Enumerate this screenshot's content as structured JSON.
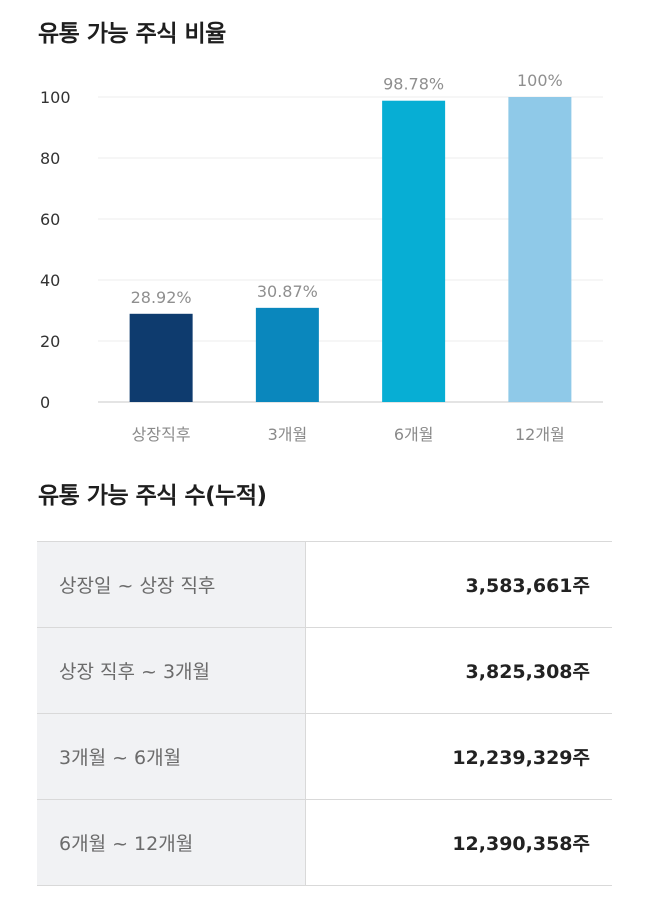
{
  "chart_title": "유통 가능 주식 비율",
  "table_title": "유통 가능 주식 수(누적)",
  "chart_data": {
    "type": "bar",
    "title": "유통 가능 주식 비율",
    "categories": [
      "상장직후",
      "3개월",
      "6개월",
      "12개월"
    ],
    "values": [
      28.92,
      30.87,
      98.78,
      100
    ],
    "value_labels": [
      "28.92%",
      "30.87%",
      "98.78%",
      "100%"
    ],
    "ylim": [
      0,
      100
    ],
    "yticks": [
      0,
      20,
      40,
      60,
      80,
      100
    ],
    "grid": true,
    "bar_colors": [
      "#0e3b6e",
      "#0a87bd",
      "#07aed4",
      "#8fc9e8"
    ]
  },
  "table": {
    "rows": [
      {
        "period": "상장일 ~ 상장 직후",
        "amount": "3,583,661주"
      },
      {
        "period": "상장 직후 ~ 3개월",
        "amount": "3,825,308주"
      },
      {
        "period": "3개월 ~ 6개월",
        "amount": "12,239,329주"
      },
      {
        "period": "6개월 ~ 12개월",
        "amount": "12,390,358주"
      }
    ]
  }
}
